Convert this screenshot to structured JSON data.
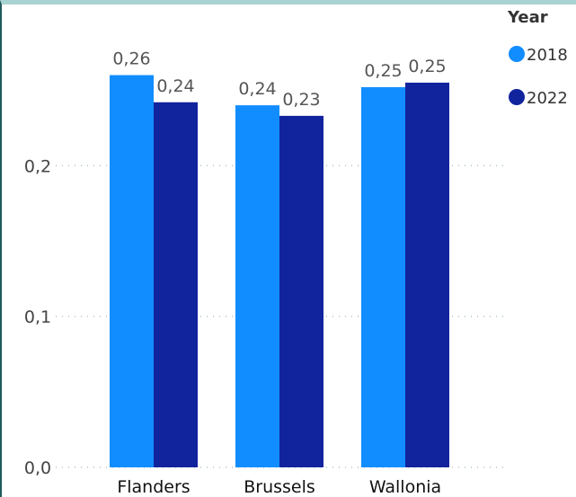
{
  "chart_data": {
    "type": "bar",
    "categories": [
      "Flanders",
      "Brussels",
      "Wallonia"
    ],
    "series": [
      {
        "name": "2018",
        "values": [
          0.26,
          0.24,
          0.252
        ],
        "labels": [
          "0,26",
          "0,24",
          "0,25"
        ],
        "color": "#118dff"
      },
      {
        "name": "2022",
        "values": [
          0.242,
          0.233,
          0.255
        ],
        "labels": [
          "0,24",
          "0,23",
          "0,25"
        ],
        "color": "#12239e"
      }
    ],
    "yticks": [
      {
        "value": 0.0,
        "label": "0,0"
      },
      {
        "value": 0.1,
        "label": "0,1"
      },
      {
        "value": 0.2,
        "label": "0,2"
      }
    ],
    "ylim": [
      0,
      0.28
    ],
    "grid": true,
    "legend": {
      "title": "Year",
      "position": "top-right"
    },
    "title": "",
    "xlabel": "",
    "ylabel": ""
  }
}
